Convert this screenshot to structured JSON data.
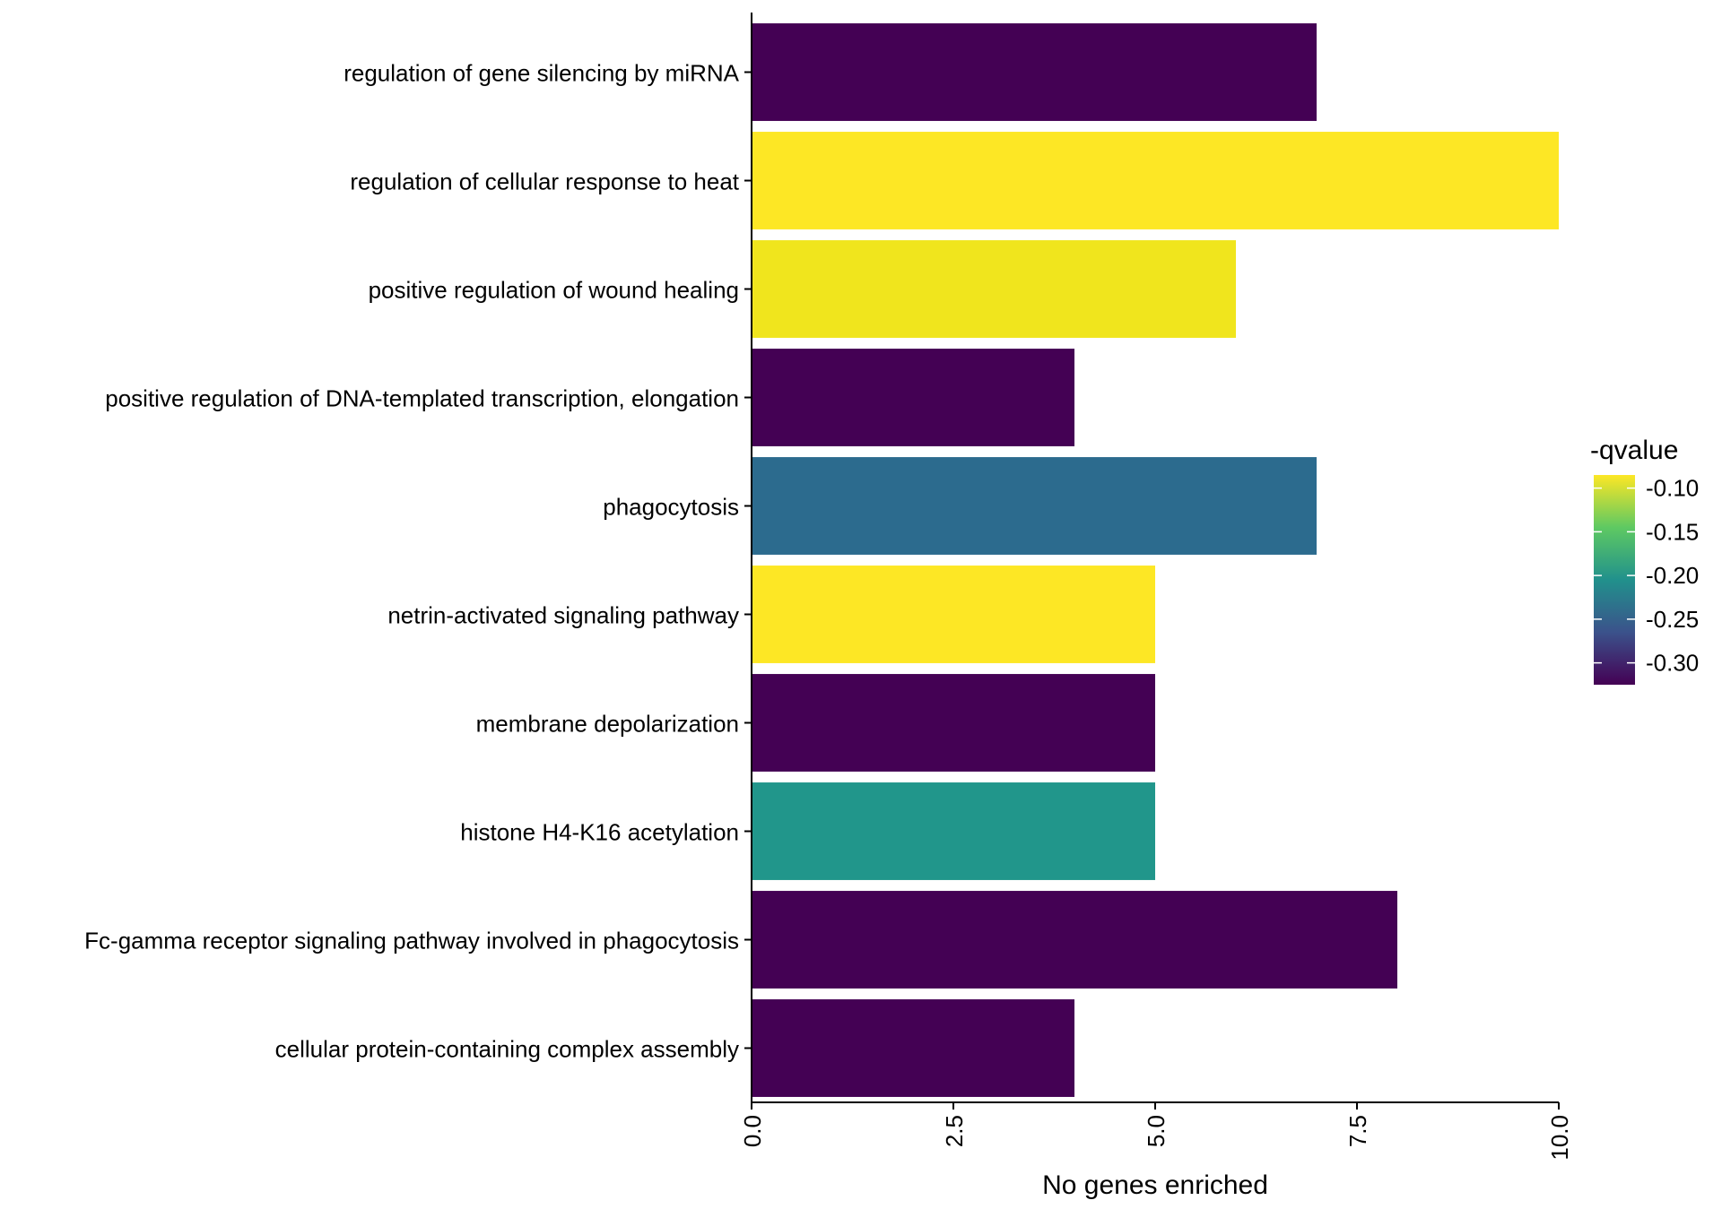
{
  "chart_data": {
    "type": "bar",
    "orientation": "horizontal",
    "title": "",
    "xlabel": "No genes enriched",
    "ylabel": "",
    "xlim": [
      0,
      10
    ],
    "x_ticks": [
      0,
      2.5,
      5,
      7.5,
      10
    ],
    "x_tick_labels": [
      "0.0",
      "2.5",
      "5.0",
      "7.5",
      "10.0"
    ],
    "grid": false,
    "categories": [
      "regulation of gene silencing by miRNA",
      "regulation of cellular response to heat",
      "positive regulation of wound healing",
      "positive regulation of DNA-templated transcription, elongation",
      "phagocytosis",
      "netrin-activated signaling pathway",
      "membrane depolarization",
      "histone H4-K16 acetylation",
      "Fc-gamma receptor signaling pathway involved in phagocytosis",
      "cellular protein-containing complex assembly"
    ],
    "values": [
      7,
      10,
      6,
      4,
      7,
      5,
      5,
      5,
      8,
      4
    ],
    "color_values": [
      -0.325,
      -0.085,
      -0.095,
      -0.325,
      -0.255,
      -0.085,
      -0.325,
      -0.2,
      -0.325,
      -0.325
    ],
    "colors": [
      "#440154",
      "#fde725",
      "#f0e51d",
      "#440154",
      "#2c6b8e",
      "#fde725",
      "#440154",
      "#21968b",
      "#440154",
      "#440154"
    ],
    "legend": {
      "title": "-qvalue",
      "position": "right",
      "range": [
        -0.325,
        -0.085
      ],
      "ticks": [
        -0.1,
        -0.15,
        -0.2,
        -0.25,
        -0.3
      ],
      "tick_labels": [
        "-0.10",
        "-0.15",
        "-0.20",
        "-0.25",
        "-0.30"
      ],
      "gradient": [
        "#440154",
        "#3b528b",
        "#21918c",
        "#5ec962",
        "#fde725"
      ]
    }
  }
}
